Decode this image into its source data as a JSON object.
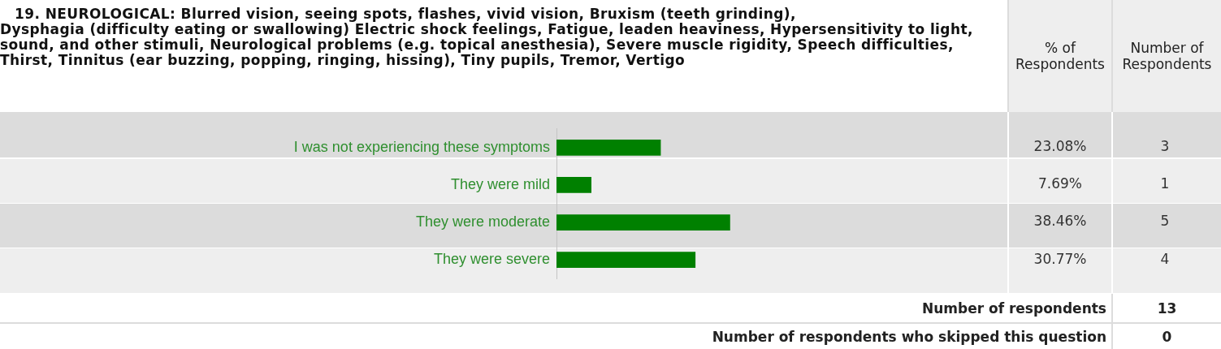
{
  "chart_data": {
    "type": "bar",
    "orientation": "horizontal",
    "title": "19. NEUROLOGICAL: Blurred vision, seeing spots, flashes, vivid vision, Bruxism (teeth grinding),",
    "subtitle": "Dysphagia (difficulty eating or swallowing) Electric shock feelings, Fatigue, leaden heaviness, Hypersensitivity to light, sound, and other stimuli, Neurological problems (e.g. topical anesthesia), Severe muscle rigidity, Speech difficulties, Thirst, Tinnitus (ear buzzing, popping, ringing, hissing), Tiny pupils, Tremor, Vertigo",
    "categories": [
      "I was not experiencing these symptoms",
      "They were mild",
      "They were moderate",
      "They were severe"
    ],
    "values": [
      23.08,
      7.69,
      38.46,
      30.77
    ],
    "value_labels": [
      "23.08%",
      "7.69%",
      "38.46%",
      "30.77%"
    ],
    "color": "#008000",
    "xlim": [
      0,
      100
    ],
    "annotations": [
      "% of Respondents",
      "Number of Respondents",
      "3",
      "1",
      "5",
      "4",
      "Number of respondents",
      "13",
      "Number of respondents who skipped this question",
      "0"
    ]
  }
}
